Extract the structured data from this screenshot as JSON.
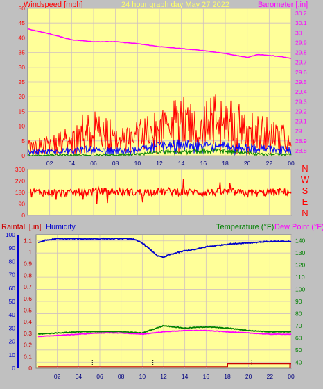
{
  "header": {
    "windspeed_label": "Windspeed [mph]",
    "title": "24 hour graph day   May 27 2022",
    "barometer_label": "Barometer [.in]"
  },
  "x_ticks": [
    "02",
    "04",
    "06",
    "08",
    "10",
    "12",
    "14",
    "16",
    "18",
    "20",
    "22",
    "00"
  ],
  "wind_y_ticks": [
    "0",
    "5",
    "10",
    "15",
    "20",
    "25",
    "30",
    "35",
    "40",
    "45",
    "50"
  ],
  "baro_y_ticks": [
    "28.8",
    "28.9",
    "29",
    "29.1",
    "29.2",
    "29.3",
    "29.4",
    "29.5",
    "29.6",
    "29.7",
    "29.8",
    "29.9",
    "30",
    "30.1",
    "30.2"
  ],
  "dir_y_ticks": [
    "0",
    "90",
    "180",
    "270",
    "360"
  ],
  "dir_letters": [
    "N",
    "W",
    "S",
    "E",
    "N"
  ],
  "bottom_header": {
    "rainfall_label": "Rainfall [.in]",
    "humidity_label": "Humidity",
    "temperature_label": "Temperature (°F)",
    "dewpoint_label": "Dew Point (°F)"
  },
  "humidity_ticks": [
    "0",
    "10",
    "20",
    "30",
    "40",
    "50",
    "60",
    "70",
    "80",
    "90",
    "100"
  ],
  "rain_ticks": [
    "0",
    "0.1",
    "0.2",
    "0.3",
    "0.4",
    "0.5",
    "0.6",
    "0.7",
    "0.8",
    "0.9",
    "1",
    "1.1"
  ],
  "temp_ticks": [
    "40",
    "50",
    "60",
    "70",
    "80",
    "90",
    "100",
    "110",
    "120",
    "130",
    "140"
  ],
  "colors": {
    "plot_bg": "#ffff99",
    "frame": "#c0c0c0",
    "wind_gust": "#ff0000",
    "wind_avg": "#0000ff",
    "wind_min": "#008000",
    "barometer": "#ff00ff",
    "direction": "#ff0000",
    "humidity": "#0000cc",
    "temperature": "#008000",
    "dewpoint": "#ff00ff",
    "rainfall": "#cc0000"
  },
  "chart_data": [
    {
      "type": "line",
      "ylabel": "Windspeed [mph]",
      "y2label": "Barometer [.in]",
      "x_hours_range": [
        0,
        24
      ],
      "ylim": [
        0,
        50
      ],
      "y2lim": [
        28.75,
        30.25
      ],
      "series": [
        {
          "name": "",
          "kind": "gust",
          "hours": [
            0,
            1,
            2,
            3,
            4,
            5,
            6,
            7,
            8,
            9,
            10,
            11,
            12,
            13,
            14,
            15,
            16,
            17,
            18,
            19,
            20,
            21,
            22,
            23,
            24
          ],
          "values": [
            3,
            3,
            4,
            5,
            6,
            8,
            9,
            8,
            6,
            5,
            7,
            10,
            11,
            11,
            12,
            12,
            14,
            13,
            12,
            11,
            10,
            9,
            8,
            7,
            5
          ]
        },
        {
          "name": "",
          "kind": "average",
          "hours": [
            0,
            2,
            4,
            6,
            8,
            10,
            11,
            12,
            14,
            16,
            18,
            20,
            22,
            24
          ],
          "values": [
            1,
            1.5,
            2,
            2.5,
            2,
            2,
            3.5,
            4,
            4,
            4,
            3.5,
            3,
            2.5,
            2
          ]
        },
        {
          "name": "",
          "kind": "minimum",
          "hours": [
            0,
            4,
            8,
            10,
            12,
            14,
            16,
            18,
            20,
            22,
            24
          ],
          "values": [
            0,
            0.3,
            0.3,
            0.5,
            1.5,
            1.5,
            2,
            1.8,
            1,
            0.5,
            0.3
          ]
        },
        {
          "name": "",
          "axis": "y2",
          "hours": [
            0,
            2,
            4,
            6,
            8,
            10,
            12,
            14,
            16,
            18,
            19,
            20,
            21,
            22,
            23,
            24
          ],
          "values": [
            30.04,
            29.99,
            29.93,
            29.91,
            29.91,
            29.89,
            29.86,
            29.84,
            29.82,
            29.79,
            29.77,
            29.75,
            29.78,
            29.77,
            29.76,
            29.74
          ]
        }
      ]
    },
    {
      "type": "line",
      "ylabel": "",
      "ylim": [
        0,
        360
      ],
      "series": [
        {
          "name": "",
          "kind": "direction",
          "hours": [
            0,
            2,
            4,
            6,
            8,
            10,
            12,
            14,
            16,
            18,
            20,
            22,
            24
          ],
          "values": [
            185,
            180,
            175,
            190,
            185,
            180,
            190,
            185,
            180,
            185,
            175,
            180,
            185
          ]
        }
      ]
    },
    {
      "type": "line",
      "ylabel": "Rainfall [.in]",
      "y2label": "Temperature (°F)",
      "ylim": [
        0,
        1.15
      ],
      "humidity_lim": [
        0,
        100
      ],
      "temp_lim": [
        35,
        145
      ],
      "series": [
        {
          "name": "Humidity",
          "axis": "humidity",
          "hours": [
            0,
            0.5,
            1,
            2,
            4,
            6,
            8,
            9,
            10,
            11,
            11.5,
            12,
            12.5,
            13,
            14,
            15,
            16,
            18,
            20,
            22,
            24
          ],
          "values": [
            93,
            95,
            96,
            97,
            97,
            97,
            97,
            97,
            94,
            87,
            84,
            83,
            85,
            86,
            88,
            89,
            91,
            93,
            94,
            95,
            95
          ]
        },
        {
          "name": "Temperature (°F)",
          "axis": "temp",
          "hours": [
            0,
            2,
            4,
            6,
            8,
            10,
            11,
            12,
            13,
            14,
            16,
            18,
            20,
            22,
            24
          ],
          "values": [
            63,
            64,
            65,
            65,
            65,
            64,
            67,
            70,
            69,
            68,
            69,
            68,
            66,
            65,
            65
          ]
        },
        {
          "name": "Dew Point (°F)",
          "axis": "temp",
          "hours": [
            0,
            2,
            4,
            6,
            8,
            10,
            12,
            14,
            16,
            18,
            20,
            22,
            24
          ],
          "values": [
            61,
            62,
            63,
            64,
            64,
            63,
            65,
            66,
            66,
            65,
            64,
            63,
            63
          ]
        },
        {
          "name": "Rainfall [.in]",
          "axis": "rain",
          "hours": [
            0,
            4,
            8,
            12,
            16,
            17.8,
            18,
            20,
            22,
            24
          ],
          "values": [
            0.01,
            0.01,
            0.01,
            0.01,
            0.01,
            0.01,
            0.04,
            0.04,
            0.04,
            0.04
          ]
        }
      ]
    }
  ]
}
